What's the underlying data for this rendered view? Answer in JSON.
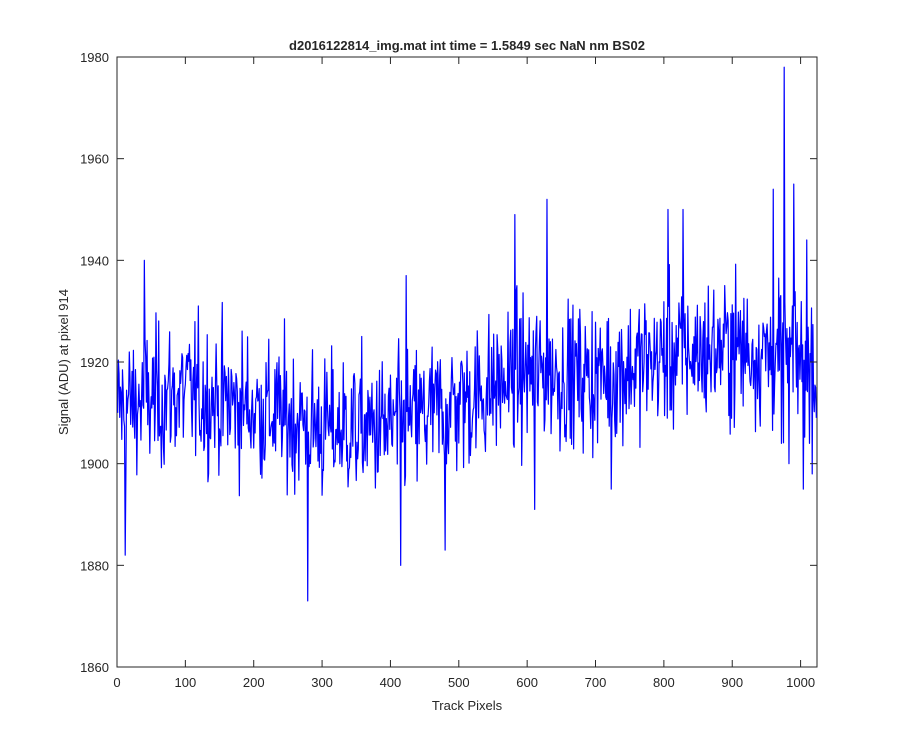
{
  "chart_data": {
    "type": "line",
    "title": "d2016122814_img.mat int time = 1.5849 sec  NaN nm BS02",
    "xlabel": "Track Pixels",
    "ylabel": "Signal (ADU) at pixel 914",
    "xlim": [
      0,
      1024
    ],
    "ylim": [
      1860,
      1980
    ],
    "xticks": [
      0,
      100,
      200,
      300,
      400,
      500,
      600,
      700,
      800,
      900,
      1000
    ],
    "yticks": [
      1860,
      1880,
      1900,
      1920,
      1940,
      1960,
      1980
    ],
    "grid": false,
    "line_color": "#0000ff",
    "trend": {
      "x": [
        0,
        100,
        200,
        300,
        400,
        500,
        600,
        700,
        800,
        900,
        1024
      ],
      "y": [
        1911,
        1914,
        1911,
        1907,
        1907,
        1912,
        1918,
        1917,
        1921,
        1923,
        1920
      ]
    },
    "noise_amplitude": 7,
    "notable_points": [
      {
        "x": 1,
        "y": 1910
      },
      {
        "x": 12,
        "y": 1882
      },
      {
        "x": 40,
        "y": 1940
      },
      {
        "x": 279,
        "y": 1873
      },
      {
        "x": 415,
        "y": 1880
      },
      {
        "x": 423,
        "y": 1937
      },
      {
        "x": 480,
        "y": 1883
      },
      {
        "x": 582,
        "y": 1949
      },
      {
        "x": 611,
        "y": 1891
      },
      {
        "x": 629,
        "y": 1952
      },
      {
        "x": 723,
        "y": 1895
      },
      {
        "x": 806,
        "y": 1950
      },
      {
        "x": 828,
        "y": 1950
      },
      {
        "x": 960,
        "y": 1954
      },
      {
        "x": 972,
        "y": 1904
      },
      {
        "x": 976,
        "y": 1978
      },
      {
        "x": 983,
        "y": 1900
      },
      {
        "x": 990,
        "y": 1955
      },
      {
        "x": 1004,
        "y": 1895
      },
      {
        "x": 1009,
        "y": 1944
      },
      {
        "x": 1013,
        "y": 1904
      },
      {
        "x": 1023,
        "y": 1909
      }
    ]
  }
}
